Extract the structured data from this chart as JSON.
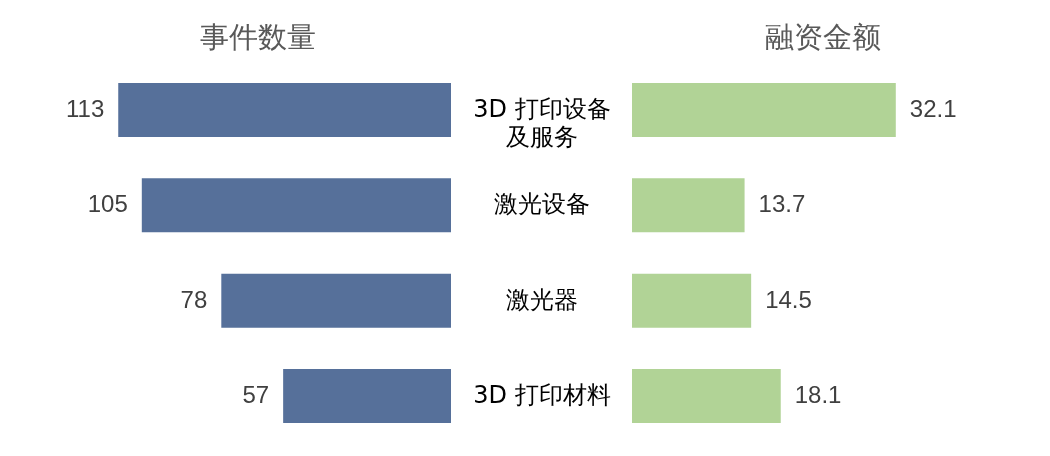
{
  "chart_data": [
    {
      "type": "bar",
      "orientation": "horizontal",
      "title": "事件数量",
      "categories": [
        "3D 打印设备及服务",
        "激光设备",
        "激光器",
        "3D 打印材料"
      ],
      "values": [
        113,
        105,
        78,
        57
      ],
      "color": "#56709a",
      "data_labels": true,
      "tick_labels": "y"
    },
    {
      "type": "bar",
      "orientation": "horizontal",
      "title": "融资金额",
      "categories": [
        "3D 打印设备及服务",
        "激光设备",
        "激光器",
        "3D 打印材料"
      ],
      "values": [
        32.1,
        13.7,
        14.5,
        18.1
      ],
      "color": "#b1d396",
      "data_labels": true,
      "tick_labels": false
    }
  ]
}
